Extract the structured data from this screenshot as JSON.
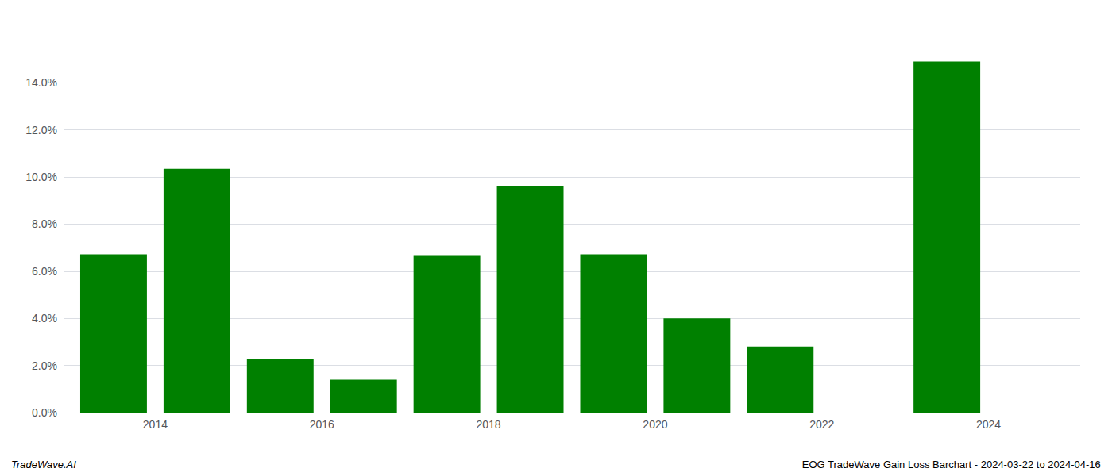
{
  "chart_data": {
    "type": "bar",
    "x": [
      2013,
      2014,
      2015,
      2016,
      2017,
      2018,
      2019,
      2020,
      2021,
      2022,
      2023
    ],
    "values": [
      0.0672,
      0.1035,
      0.0228,
      0.014,
      0.0665,
      0.096,
      0.0672,
      0.04,
      0.028,
      0.0,
      0.149
    ],
    "color": "#008000",
    "xlim": [
      2012.4,
      2024.6
    ],
    "xticks": [
      {
        "value": 2013.5,
        "label": "2014"
      },
      {
        "value": 2015.5,
        "label": "2016"
      },
      {
        "value": 2017.5,
        "label": "2018"
      },
      {
        "value": 2019.5,
        "label": "2020"
      },
      {
        "value": 2021.5,
        "label": "2022"
      },
      {
        "value": 2023.5,
        "label": "2024"
      }
    ],
    "ylim": [
      0,
      0.165
    ],
    "yticks": [
      {
        "value": 0.0,
        "label": "0.0%"
      },
      {
        "value": 0.02,
        "label": "2.0%"
      },
      {
        "value": 0.04,
        "label": "4.0%"
      },
      {
        "value": 0.06,
        "label": "6.0%"
      },
      {
        "value": 0.08,
        "label": "8.0%"
      },
      {
        "value": 0.1,
        "label": "10.0%"
      },
      {
        "value": 0.12,
        "label": "12.0%"
      },
      {
        "value": 0.14,
        "label": "14.0%"
      }
    ],
    "grid": true,
    "annotations": [
      "TradeWave.AI",
      "EOG TradeWave Gain Loss Barchart - 2024-03-22 to 2024-04-16"
    ]
  }
}
